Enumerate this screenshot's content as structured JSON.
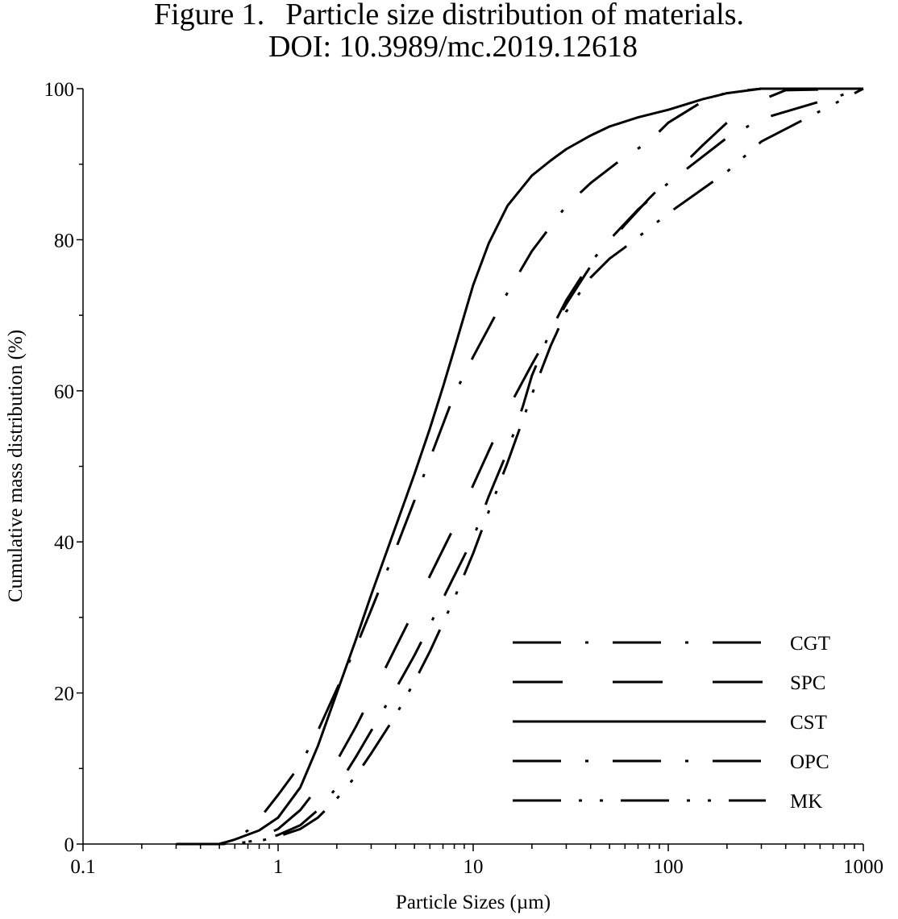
{
  "chart_data": {
    "type": "line",
    "title_prefix": "Figure 1.",
    "title": "Particle size distribution of materials.",
    "subtitle": "DOI: 10.3989/mc.2019.12618",
    "xlabel": "Particle Sizes (µm)",
    "ylabel": "Cumulative mass distribution (%)",
    "x_scale": "log",
    "xlim": [
      0.1,
      1000
    ],
    "ylim": [
      0,
      100
    ],
    "x_ticks": [
      "0.1",
      "1",
      "10",
      "100",
      "1000"
    ],
    "y_ticks": [
      "0",
      "20",
      "40",
      "60",
      "80",
      "100"
    ],
    "grid": false,
    "legend_position": "bottom-right",
    "series": [
      {
        "name": "CGT",
        "dash": "long-dash-dot",
        "x": [
          0.3,
          0.5,
          0.6,
          0.7,
          0.8,
          1.0,
          1.3,
          1.6,
          2.0,
          2.5,
          3.0,
          4.0,
          5.0,
          6.0,
          8.0,
          10,
          15,
          20,
          30,
          40,
          60,
          80,
          100,
          150,
          200,
          300,
          400,
          1000
        ],
        "y": [
          0,
          0,
          0.6,
          1.8,
          3.3,
          6.5,
          10.5,
          15.0,
          20.5,
          26.0,
          31.0,
          39.0,
          45.5,
          51.0,
          59.5,
          64.5,
          73.0,
          78.5,
          84.5,
          87.5,
          91.0,
          93.0,
          95.5,
          98.3,
          99.5,
          100,
          100,
          100
        ]
      },
      {
        "name": "SPC",
        "dash": "long-dash",
        "x": [
          0.3,
          0.5,
          0.6,
          0.8,
          1.0,
          1.3,
          1.6,
          2.0,
          2.5,
          3.0,
          4.0,
          5.0,
          6.0,
          8.0,
          10,
          15,
          20,
          30,
          40,
          60,
          80,
          100,
          150,
          200,
          300,
          400,
          1000
        ],
        "y": [
          0,
          0,
          0.1,
          0.8,
          2.0,
          4.5,
          7.5,
          11.0,
          15.5,
          19.5,
          26.0,
          31.0,
          35.5,
          42.0,
          47.5,
          57.5,
          63.5,
          71.5,
          76.5,
          82.0,
          85.5,
          88.0,
          92.5,
          95.5,
          98.5,
          99.8,
          100
        ]
      },
      {
        "name": "CST",
        "dash": "solid",
        "x": [
          0.3,
          0.5,
          0.6,
          0.8,
          1.0,
          1.3,
          1.6,
          2.0,
          2.5,
          3.0,
          4.0,
          5.0,
          6.0,
          7.0,
          8.0,
          10,
          12,
          15,
          20,
          25,
          30,
          40,
          50,
          70,
          100,
          150,
          200,
          300,
          1000
        ],
        "y": [
          0,
          0,
          0.6,
          1.8,
          3.5,
          7.5,
          13.0,
          20.0,
          27.0,
          33.0,
          42.0,
          49.0,
          55.0,
          60.5,
          65.5,
          74.0,
          79.5,
          84.5,
          88.5,
          90.5,
          92.0,
          93.8,
          95.0,
          96.2,
          97.2,
          98.6,
          99.4,
          100,
          100
        ]
      },
      {
        "name": "OPC",
        "dash": "long-dash-dot",
        "x": [
          0.3,
          0.5,
          0.6,
          0.8,
          1.0,
          1.3,
          1.6,
          2.0,
          2.5,
          3.0,
          4.0,
          5.0,
          6.0,
          8.0,
          10,
          12,
          15,
          18,
          20,
          25,
          30,
          40,
          50,
          70,
          100,
          150,
          200,
          300,
          1000
        ],
        "y": [
          0,
          0,
          0.1,
          0.5,
          1.2,
          2.5,
          4.5,
          7.5,
          11.5,
          15.0,
          20.5,
          25.0,
          29.0,
          35.5,
          40.5,
          46.0,
          52.0,
          58.0,
          62.0,
          68.0,
          72.0,
          77.0,
          80.0,
          84.0,
          87.5,
          91.0,
          93.5,
          96.0,
          100
        ]
      },
      {
        "name": "MK",
        "dash": "long-dash-dot-dot",
        "x": [
          0.3,
          0.5,
          0.6,
          0.8,
          1.0,
          1.3,
          1.6,
          2.0,
          2.5,
          3.0,
          4.0,
          5.0,
          6.0,
          8.0,
          10,
          12,
          15,
          20,
          25,
          30,
          40,
          50,
          60,
          80,
          100,
          200,
          300,
          1000
        ],
        "y": [
          0,
          0,
          0.1,
          0.4,
          1.0,
          2.0,
          3.5,
          6.0,
          9.0,
          12.0,
          17.0,
          21.5,
          25.5,
          32.5,
          38.5,
          44.0,
          50.5,
          59.5,
          66.0,
          70.5,
          75.0,
          77.5,
          79.0,
          81.5,
          83.5,
          89.0,
          93.0,
          100
        ]
      }
    ]
  }
}
